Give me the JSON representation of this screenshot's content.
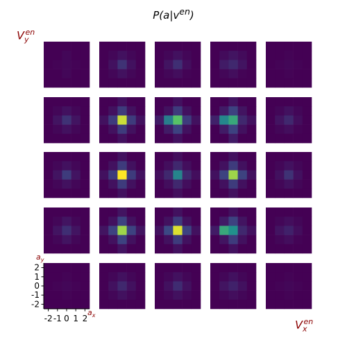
{
  "chart_data": {
    "type": "heatmap",
    "title": "P(a|v^en)",
    "ylabel": "V_y^en",
    "xlabel": "V_x^en",
    "inset_xlabel": "a_x",
    "inset_ylabel": "a_y",
    "grid_rows": 5,
    "grid_cols": 5,
    "cell_size": 5,
    "tick_labels": [
      "-2",
      "-1",
      "0",
      "1",
      "2"
    ],
    "colormap": [
      "#440154",
      "#3b528b",
      "#21918c",
      "#5ec962",
      "#fde725"
    ],
    "value_range": [
      0,
      1
    ],
    "panels": [
      [
        [
          [
            0.0,
            0.0,
            0.0,
            0.0,
            0.0
          ],
          [
            0.0,
            0.0,
            0.02,
            0.0,
            0.0
          ],
          [
            0.0,
            0.01,
            0.02,
            0.01,
            0.0
          ],
          [
            0.0,
            0.0,
            0.02,
            0.0,
            0.0
          ],
          [
            0.0,
            0.0,
            0.0,
            0.0,
            0.0
          ]
        ],
        [
          [
            0.0,
            0.0,
            0.0,
            0.0,
            0.0
          ],
          [
            0.0,
            0.02,
            0.05,
            0.02,
            0.0
          ],
          [
            0.0,
            0.05,
            0.15,
            0.05,
            0.0
          ],
          [
            0.0,
            0.02,
            0.05,
            0.02,
            0.0
          ],
          [
            0.0,
            0.0,
            0.0,
            0.0,
            0.0
          ]
        ],
        [
          [
            0.0,
            0.0,
            0.0,
            0.0,
            0.0
          ],
          [
            0.0,
            0.02,
            0.05,
            0.02,
            0.0
          ],
          [
            0.0,
            0.06,
            0.14,
            0.04,
            0.0
          ],
          [
            0.0,
            0.02,
            0.04,
            0.01,
            0.0
          ],
          [
            0.0,
            0.0,
            0.0,
            0.0,
            0.0
          ]
        ],
        [
          [
            0.0,
            0.0,
            0.0,
            0.0,
            0.0
          ],
          [
            0.0,
            0.03,
            0.06,
            0.03,
            0.0
          ],
          [
            0.0,
            0.08,
            0.12,
            0.06,
            0.0
          ],
          [
            0.0,
            0.02,
            0.04,
            0.01,
            0.0
          ],
          [
            0.0,
            0.0,
            0.0,
            0.0,
            0.0
          ]
        ],
        [
          [
            0.0,
            0.0,
            0.0,
            0.0,
            0.0
          ],
          [
            0.0,
            0.0,
            0.01,
            0.0,
            0.0
          ],
          [
            0.0,
            0.01,
            0.02,
            0.01,
            0.0
          ],
          [
            0.0,
            0.0,
            0.01,
            0.0,
            0.0
          ],
          [
            0.0,
            0.0,
            0.0,
            0.0,
            0.0
          ]
        ]
      ],
      [
        [
          [
            0.0,
            0.0,
            0.0,
            0.0,
            0.0
          ],
          [
            0.0,
            0.02,
            0.05,
            0.02,
            0.0
          ],
          [
            0.0,
            0.06,
            0.15,
            0.06,
            0.0
          ],
          [
            0.0,
            0.02,
            0.05,
            0.02,
            0.0
          ],
          [
            0.0,
            0.0,
            0.0,
            0.0,
            0.0
          ]
        ],
        [
          [
            0.0,
            0.0,
            0.05,
            0.0,
            0.0
          ],
          [
            0.0,
            0.05,
            0.18,
            0.05,
            0.0
          ],
          [
            0.05,
            0.18,
            0.92,
            0.18,
            0.05
          ],
          [
            0.0,
            0.05,
            0.18,
            0.05,
            0.0
          ],
          [
            0.0,
            0.0,
            0.05,
            0.0,
            0.0
          ]
        ],
        [
          [
            0.0,
            0.0,
            0.05,
            0.0,
            0.0
          ],
          [
            0.0,
            0.05,
            0.18,
            0.05,
            0.0
          ],
          [
            0.08,
            0.42,
            0.72,
            0.18,
            0.05
          ],
          [
            0.0,
            0.08,
            0.2,
            0.05,
            0.0
          ],
          [
            0.0,
            0.0,
            0.05,
            0.0,
            0.0
          ]
        ],
        [
          [
            0.0,
            0.0,
            0.06,
            0.0,
            0.0
          ],
          [
            0.0,
            0.08,
            0.2,
            0.06,
            0.0
          ],
          [
            0.1,
            0.46,
            0.6,
            0.12,
            0.05
          ],
          [
            0.0,
            0.08,
            0.2,
            0.05,
            0.0
          ],
          [
            0.0,
            0.0,
            0.08,
            0.0,
            0.0
          ]
        ],
        [
          [
            0.0,
            0.0,
            0.0,
            0.0,
            0.0
          ],
          [
            0.0,
            0.02,
            0.05,
            0.02,
            0.0
          ],
          [
            0.0,
            0.06,
            0.12,
            0.04,
            0.0
          ],
          [
            0.0,
            0.02,
            0.04,
            0.01,
            0.0
          ],
          [
            0.0,
            0.0,
            0.0,
            0.0,
            0.0
          ]
        ]
      ],
      [
        [
          [
            0.0,
            0.0,
            0.0,
            0.0,
            0.0
          ],
          [
            0.0,
            0.02,
            0.05,
            0.02,
            0.0
          ],
          [
            0.0,
            0.06,
            0.18,
            0.06,
            0.0
          ],
          [
            0.0,
            0.02,
            0.05,
            0.02,
            0.0
          ],
          [
            0.0,
            0.0,
            0.0,
            0.0,
            0.0
          ]
        ],
        [
          [
            0.0,
            0.0,
            0.05,
            0.0,
            0.0
          ],
          [
            0.0,
            0.05,
            0.18,
            0.05,
            0.0
          ],
          [
            0.05,
            0.18,
            1.0,
            0.18,
            0.05
          ],
          [
            0.0,
            0.05,
            0.18,
            0.05,
            0.0
          ],
          [
            0.0,
            0.0,
            0.05,
            0.0,
            0.0
          ]
        ],
        [
          [
            0.0,
            0.0,
            0.04,
            0.0,
            0.0
          ],
          [
            0.0,
            0.04,
            0.12,
            0.04,
            0.0
          ],
          [
            0.04,
            0.12,
            0.45,
            0.12,
            0.04
          ],
          [
            0.0,
            0.04,
            0.12,
            0.04,
            0.0
          ],
          [
            0.0,
            0.0,
            0.04,
            0.0,
            0.0
          ]
        ],
        [
          [
            0.0,
            0.0,
            0.05,
            0.0,
            0.0
          ],
          [
            0.0,
            0.05,
            0.18,
            0.05,
            0.0
          ],
          [
            0.05,
            0.2,
            0.85,
            0.2,
            0.05
          ],
          [
            0.0,
            0.05,
            0.18,
            0.05,
            0.0
          ],
          [
            0.0,
            0.0,
            0.05,
            0.0,
            0.0
          ]
        ],
        [
          [
            0.0,
            0.0,
            0.0,
            0.0,
            0.0
          ],
          [
            0.0,
            0.02,
            0.05,
            0.02,
            0.0
          ],
          [
            0.0,
            0.05,
            0.15,
            0.05,
            0.0
          ],
          [
            0.0,
            0.02,
            0.05,
            0.02,
            0.0
          ],
          [
            0.0,
            0.0,
            0.0,
            0.0,
            0.0
          ]
        ]
      ],
      [
        [
          [
            0.0,
            0.0,
            0.0,
            0.0,
            0.0
          ],
          [
            0.0,
            0.02,
            0.06,
            0.02,
            0.0
          ],
          [
            0.0,
            0.06,
            0.14,
            0.06,
            0.0
          ],
          [
            0.0,
            0.02,
            0.06,
            0.02,
            0.0
          ],
          [
            0.0,
            0.0,
            0.0,
            0.0,
            0.0
          ]
        ],
        [
          [
            0.0,
            0.0,
            0.06,
            0.0,
            0.0
          ],
          [
            0.0,
            0.05,
            0.2,
            0.05,
            0.0
          ],
          [
            0.06,
            0.2,
            0.85,
            0.2,
            0.06
          ],
          [
            0.0,
            0.05,
            0.2,
            0.05,
            0.0
          ],
          [
            0.0,
            0.0,
            0.06,
            0.0,
            0.0
          ]
        ],
        [
          [
            0.0,
            0.0,
            0.05,
            0.0,
            0.0
          ],
          [
            0.0,
            0.05,
            0.18,
            0.05,
            0.0
          ],
          [
            0.05,
            0.22,
            0.95,
            0.2,
            0.05
          ],
          [
            0.0,
            0.05,
            0.18,
            0.05,
            0.0
          ],
          [
            0.0,
            0.0,
            0.05,
            0.0,
            0.0
          ]
        ],
        [
          [
            0.0,
            0.0,
            0.05,
            0.0,
            0.0
          ],
          [
            0.0,
            0.08,
            0.2,
            0.06,
            0.0
          ],
          [
            0.08,
            0.6,
            0.5,
            0.12,
            0.05
          ],
          [
            0.0,
            0.06,
            0.18,
            0.05,
            0.0
          ],
          [
            0.0,
            0.0,
            0.05,
            0.0,
            0.0
          ]
        ],
        [
          [
            0.0,
            0.0,
            0.0,
            0.0,
            0.0
          ],
          [
            0.0,
            0.02,
            0.04,
            0.02,
            0.0
          ],
          [
            0.0,
            0.06,
            0.1,
            0.04,
            0.0
          ],
          [
            0.0,
            0.02,
            0.04,
            0.01,
            0.0
          ],
          [
            0.0,
            0.0,
            0.0,
            0.0,
            0.0
          ]
        ]
      ],
      [
        [
          [
            0.0,
            0.0,
            0.0,
            0.0,
            0.0
          ],
          [
            0.0,
            0.0,
            0.01,
            0.0,
            0.0
          ],
          [
            0.0,
            0.01,
            0.02,
            0.01,
            0.0
          ],
          [
            0.0,
            0.0,
            0.01,
            0.0,
            0.0
          ],
          [
            0.0,
            0.0,
            0.0,
            0.0,
            0.0
          ]
        ],
        [
          [
            0.0,
            0.0,
            0.0,
            0.0,
            0.0
          ],
          [
            0.0,
            0.02,
            0.05,
            0.02,
            0.0
          ],
          [
            0.0,
            0.05,
            0.12,
            0.05,
            0.0
          ],
          [
            0.0,
            0.02,
            0.05,
            0.02,
            0.0
          ],
          [
            0.0,
            0.0,
            0.0,
            0.0,
            0.0
          ]
        ],
        [
          [
            0.0,
            0.0,
            0.0,
            0.0,
            0.0
          ],
          [
            0.0,
            0.02,
            0.05,
            0.02,
            0.0
          ],
          [
            0.0,
            0.05,
            0.13,
            0.05,
            0.0
          ],
          [
            0.0,
            0.02,
            0.05,
            0.02,
            0.0
          ],
          [
            0.0,
            0.0,
            0.0,
            0.0,
            0.0
          ]
        ],
        [
          [
            0.0,
            0.0,
            0.0,
            0.0,
            0.0
          ],
          [
            0.0,
            0.02,
            0.05,
            0.02,
            0.0
          ],
          [
            0.0,
            0.06,
            0.1,
            0.05,
            0.0
          ],
          [
            0.0,
            0.02,
            0.04,
            0.02,
            0.0
          ],
          [
            0.0,
            0.0,
            0.0,
            0.0,
            0.0
          ]
        ],
        [
          [
            0.0,
            0.0,
            0.0,
            0.0,
            0.0
          ],
          [
            0.0,
            0.0,
            0.01,
            0.0,
            0.0
          ],
          [
            0.0,
            0.01,
            0.02,
            0.01,
            0.0
          ],
          [
            0.0,
            0.0,
            0.01,
            0.0,
            0.0
          ],
          [
            0.0,
            0.0,
            0.0,
            0.0,
            0.0
          ]
        ]
      ]
    ]
  }
}
